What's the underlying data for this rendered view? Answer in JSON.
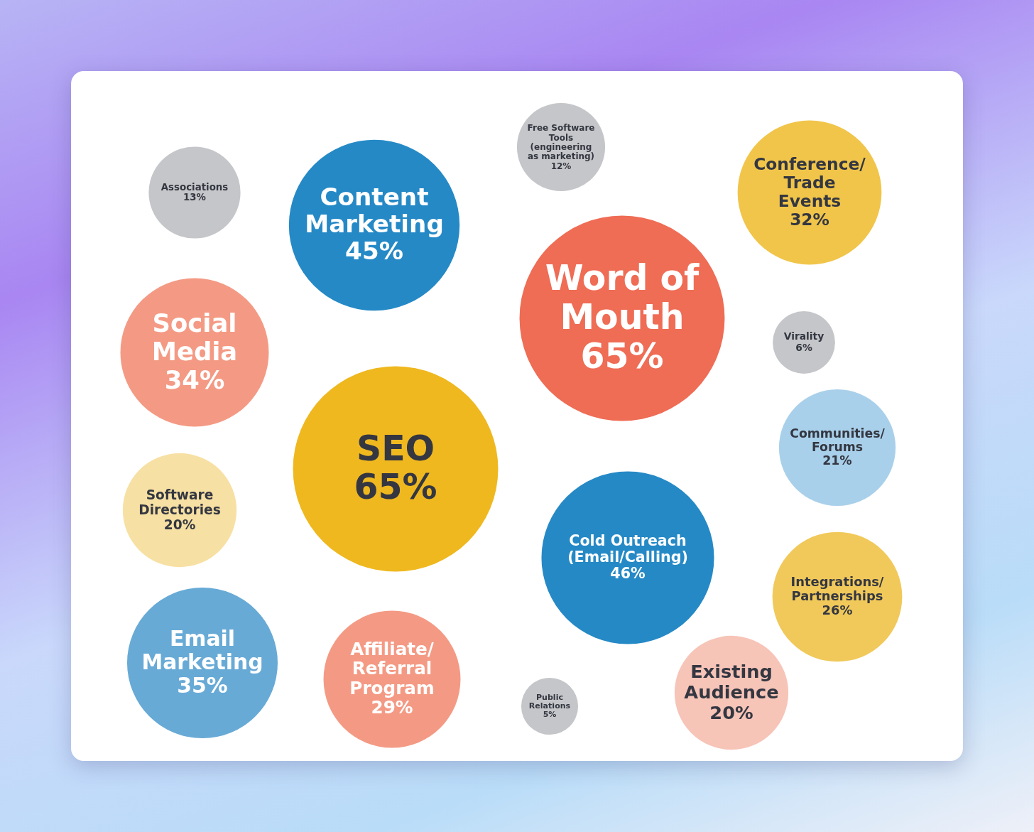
{
  "chart_data": {
    "type": "other",
    "categories": [
      "Free Software Tools (engineering as marketing)",
      "Conference/ Trade Events",
      "Associations",
      "Content Marketing",
      "Word of Mouth",
      "Social Media",
      "Virality",
      "SEO",
      "Communities/ Forums",
      "Software Directories",
      "Cold Outreach (Email/Calling)",
      "Integrations/ Partnerships",
      "Email Marketing",
      "Affiliate/ Referral Program",
      "Public Relations",
      "Existing Audience"
    ],
    "values": [
      12,
      32,
      13,
      45,
      65,
      34,
      6,
      65,
      21,
      20,
      46,
      26,
      35,
      29,
      5,
      20
    ],
    "value_labels": [
      "12%",
      "32%",
      "13%",
      "45%",
      "65%",
      "34%",
      "6%",
      "65%",
      "21%",
      "20%",
      "46%",
      "26%",
      "35%",
      "29%",
      "5%",
      "20%"
    ],
    "colors": [
      "#c5c6c9",
      "#f1c54a",
      "#c5c6c9",
      "#2589c6",
      "#ef6c55",
      "#f49a84",
      "#c5c6c9",
      "#efb81f",
      "#a9d0ea",
      "#f7e0a3",
      "#2589c6",
      "#f1c95a",
      "#68aad6",
      "#f49a84",
      "#c5c6c9",
      "#f7c4b8"
    ]
  }
}
